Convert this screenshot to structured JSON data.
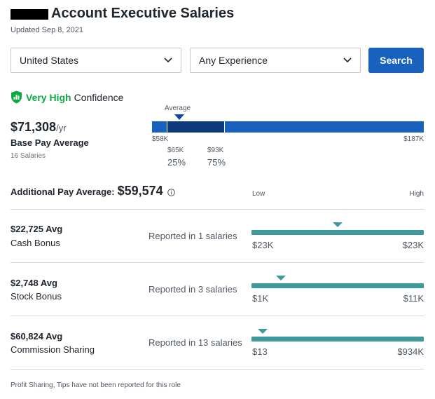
{
  "header": {
    "title": "Account Executive Salaries",
    "updated": "Updated Sep 8, 2021"
  },
  "filters": {
    "location": "United States",
    "experience": "Any Experience",
    "search_label": "Search"
  },
  "confidence": {
    "level": "Very High",
    "label": "Confidence"
  },
  "base_pay": {
    "amount": "$71,308",
    "period": "/yr",
    "label": "Base Pay Average",
    "count": "16 Salaries",
    "average_label": "Average",
    "min": "$58K",
    "max": "$187K",
    "p25_value": "$65K",
    "p25_label": "25%",
    "p75_value": "$93K",
    "p75_label": "75%"
  },
  "additional_pay": {
    "label": "Additional Pay Average:",
    "amount": "$59,574",
    "low_label": "Low",
    "high_label": "High",
    "items": [
      {
        "amount": "$22,725 Avg",
        "name": "Cash Bonus",
        "reported": "Reported in 1 salaries",
        "min": "$23K",
        "max": "$23K",
        "avg_position": 0.5
      },
      {
        "amount": "$2,748 Avg",
        "name": "Stock Bonus",
        "reported": "Reported in 3 salaries",
        "min": "$1K",
        "max": "$11K",
        "avg_position": 0.17
      },
      {
        "amount": "$60,824 Avg",
        "name": "Commission Sharing",
        "reported": "Reported in 13 salaries",
        "min": "$13",
        "max": "$934K",
        "avg_position": 0.065
      }
    ]
  },
  "footnote": "Profit Sharing, Tips have not been reported for this role",
  "colors": {
    "accent": "#1861bf",
    "accent_dark": "#0d3a7a",
    "confidence_green": "#0caa41",
    "bar_teal": "#3e9a9a"
  }
}
